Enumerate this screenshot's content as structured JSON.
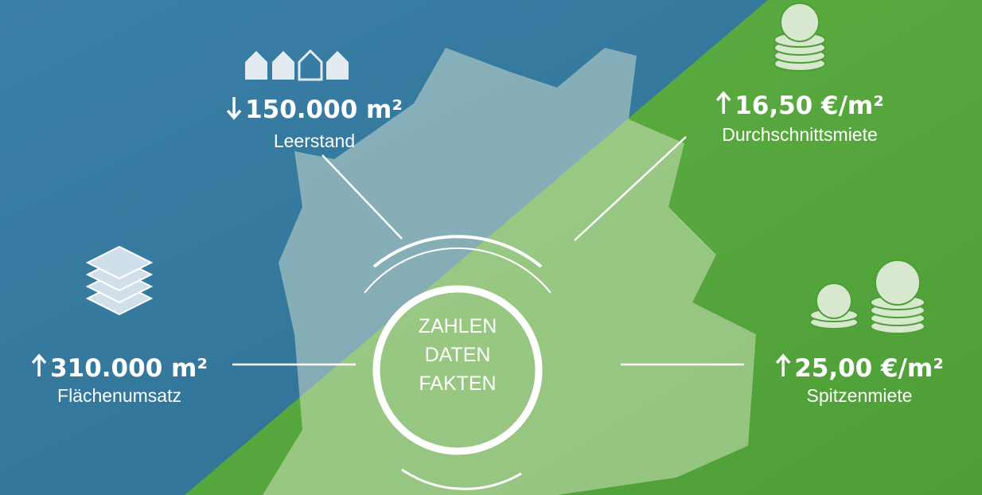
{
  "center": {
    "lines": [
      "ZAHLEN",
      "DATEN",
      "FAKTEN"
    ]
  },
  "stats": [
    {
      "value": "150.000 m²",
      "label": "Leerstand",
      "trend": "down"
    },
    {
      "value": "16,50 €/m²",
      "label": "Durchschnittsmiete",
      "trend": "up"
    },
    {
      "value": "310.000 m²",
      "label": "Flächenumsatz",
      "trend": "up"
    },
    {
      "value": "25,00 €/m²",
      "label": "Spitzenmiete",
      "trend": "up"
    }
  ]
}
